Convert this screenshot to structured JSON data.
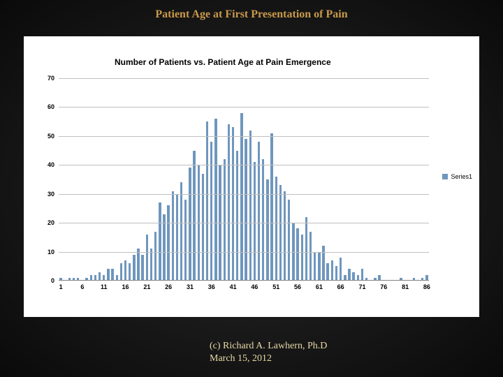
{
  "slide": {
    "title": "Patient Age at First Presentation of Pain",
    "title_color": "#c99a4a",
    "title_fontsize": 16,
    "background_gradient": [
      "#2a2a2a",
      "#0a0a0a"
    ]
  },
  "attribution": {
    "line1": "(c) Richard A. Lawhern, Ph.D",
    "line2": "March 15, 2012",
    "color": "#e8d9a8",
    "fontsize": 14
  },
  "chart": {
    "type": "bar",
    "title": "Number of Patients vs. Patient Age at Pain Emergence",
    "title_fontsize": 12,
    "panel_background": "#ffffff",
    "bar_color": "#6f96bd",
    "grid_color": "#bfbfbf",
    "axis_color": "#808080",
    "tick_fontsize": 9,
    "tick_fontweight": "bold",
    "ylim": [
      0,
      70
    ],
    "ytick_step": 10,
    "yticks": [
      0,
      10,
      20,
      30,
      40,
      50,
      60,
      70
    ],
    "x_start": 1,
    "x_step": 1,
    "x_count": 86,
    "xtick_every": 5,
    "bar_width_ratio": 0.55,
    "legend": {
      "label": "Series1",
      "swatch_color": "#6f96bd",
      "fontsize": 9
    },
    "values": [
      1,
      0,
      1,
      1,
      1,
      0,
      1,
      2,
      2,
      3,
      2,
      4,
      4,
      2,
      6,
      7,
      6,
      9,
      11,
      9,
      16,
      11,
      17,
      27,
      23,
      26,
      31,
      30,
      34,
      28,
      39,
      45,
      40,
      37,
      55,
      48,
      56,
      40,
      42,
      54,
      53,
      45,
      58,
      49,
      52,
      41,
      48,
      42,
      35,
      51,
      36,
      33,
      31,
      28,
      20,
      18,
      16,
      22,
      17,
      10,
      10,
      12,
      6,
      7,
      5,
      8,
      2,
      4,
      3,
      2,
      4,
      1,
      0,
      1,
      2,
      0,
      0,
      0,
      0,
      1,
      0,
      0,
      1,
      0,
      1,
      2
    ]
  }
}
